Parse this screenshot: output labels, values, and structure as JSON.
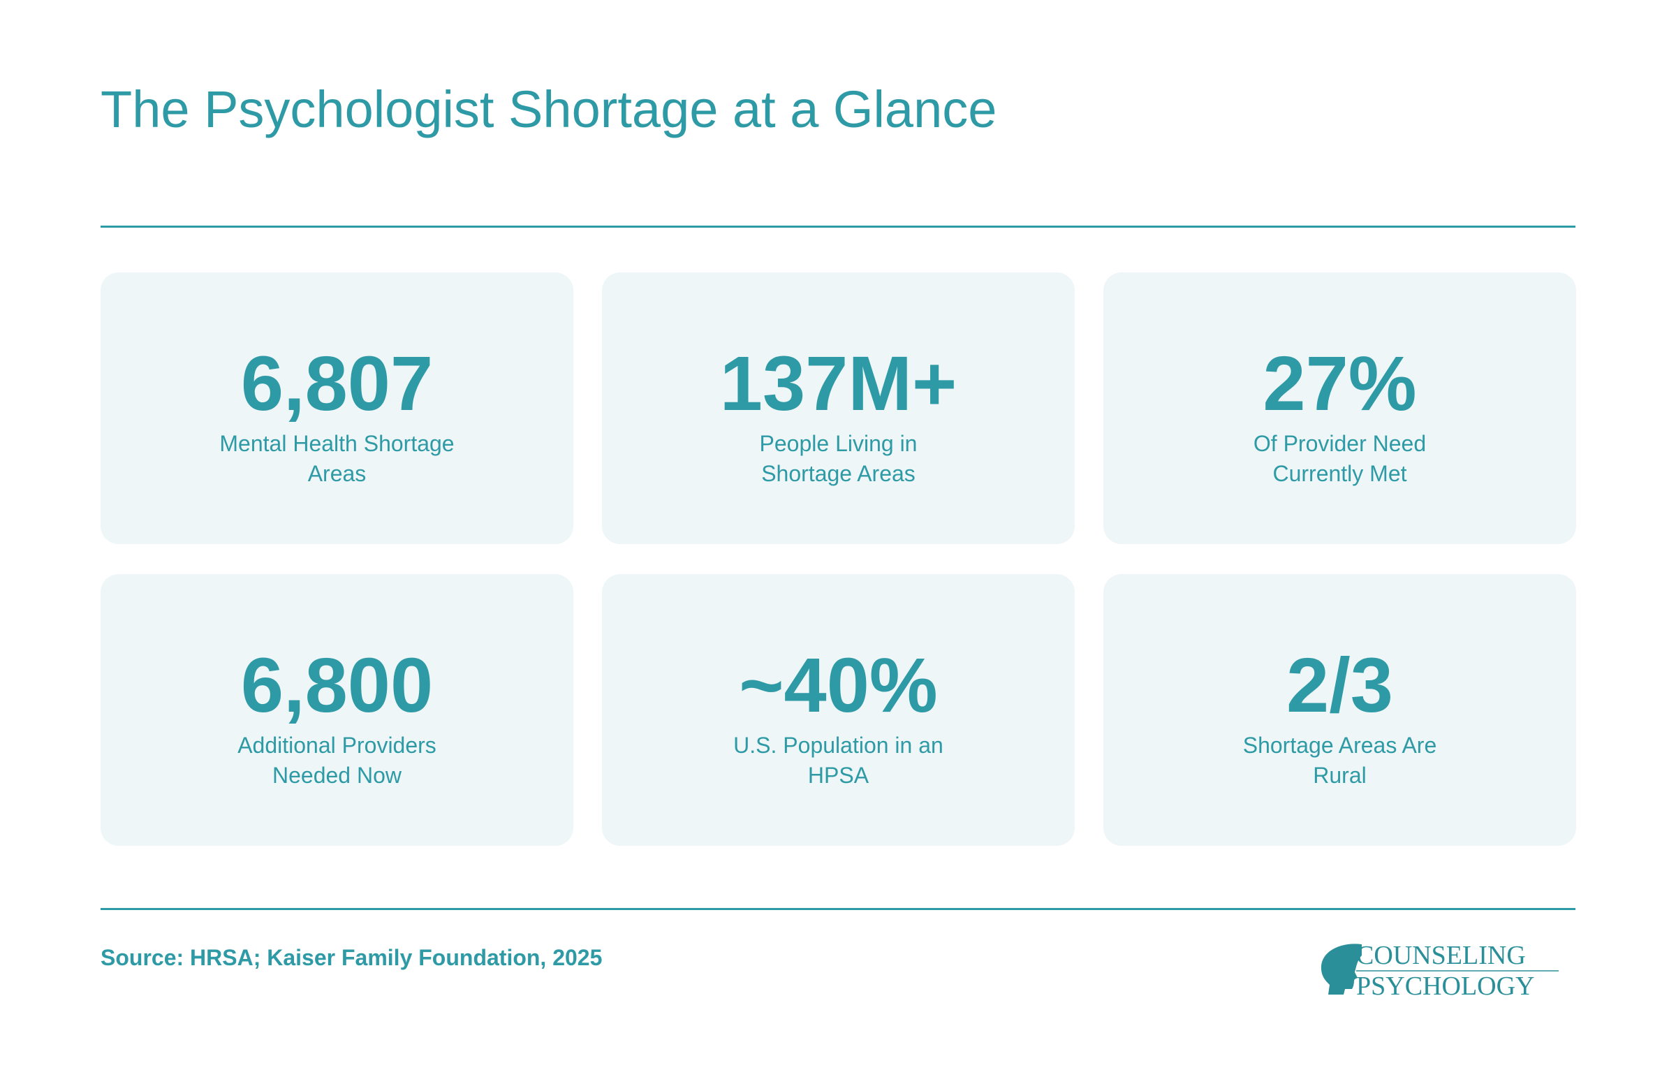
{
  "header": {
    "title": "The Psychologist Shortage at a Glance"
  },
  "stats": [
    {
      "value": "6,807",
      "label_lines": [
        "Mental Health Shortage",
        "Areas"
      ]
    },
    {
      "value": "137M+",
      "label_lines": [
        "People Living in",
        "Shortage Areas"
      ]
    },
    {
      "value": "27%",
      "label_lines": [
        "Of Provider Need",
        "Currently Met"
      ]
    },
    {
      "value": "6,800",
      "label_lines": [
        "Additional Providers",
        "Needed Now"
      ]
    },
    {
      "value": "~40%",
      "label_lines": [
        "U.S. Population in an",
        "HPSA"
      ]
    },
    {
      "value": "2/3",
      "label_lines": [
        "Shortage Areas Are",
        "Rural"
      ]
    }
  ],
  "footer": {
    "source": "Source: HRSA; Kaiser Family Foundation, 2025"
  },
  "logo": {
    "line1": "COUNSELING",
    "line2": "PSYCHOLOGY"
  }
}
